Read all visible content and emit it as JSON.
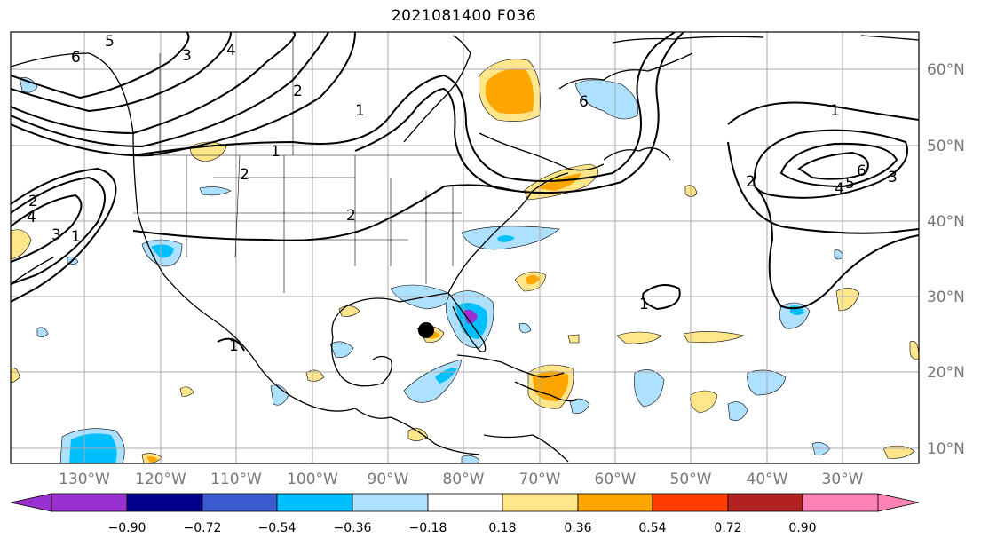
{
  "title": "2021081400 F036",
  "lon_labels": [
    "130°W",
    "120°W",
    "110°W",
    "100°W",
    "90°W",
    "80°W",
    "70°W",
    "60°W",
    "50°W",
    "40°W",
    "30°W"
  ],
  "lat_labels": [
    "60°N",
    "50°N",
    "40°N",
    "30°N",
    "20°N",
    "10°N"
  ],
  "colorbar": {
    "ticks": [
      "−0.90",
      "−0.72",
      "−0.54",
      "−0.36",
      "−0.18",
      "0.18",
      "0.36",
      "0.54",
      "0.72",
      "0.90"
    ],
    "colors": [
      "#9b30d0",
      "#00008b",
      "#3a5bd0",
      "#00bfff",
      "#aee0ff",
      "#ffffff",
      "#ffe68a",
      "#ffa500",
      "#ff3d00",
      "#b22222",
      "#ff82b4"
    ]
  },
  "contour_labels": {
    "c1": "6",
    "c2": "5",
    "c3": "3",
    "c4": "4",
    "c5": "1",
    "c6": "2",
    "c7": "2",
    "c8": "1",
    "c9": "2",
    "c10": "1",
    "c11": "6",
    "c12": "2",
    "c13": "4",
    "c14": "5",
    "c15": "6",
    "c16": "3",
    "c17": "1",
    "c18": "2",
    "c19": "4",
    "c20": "3",
    "c21": "1",
    "c22": "1"
  },
  "storm_marker": {
    "lon": -85.5,
    "lat": 25.5
  }
}
